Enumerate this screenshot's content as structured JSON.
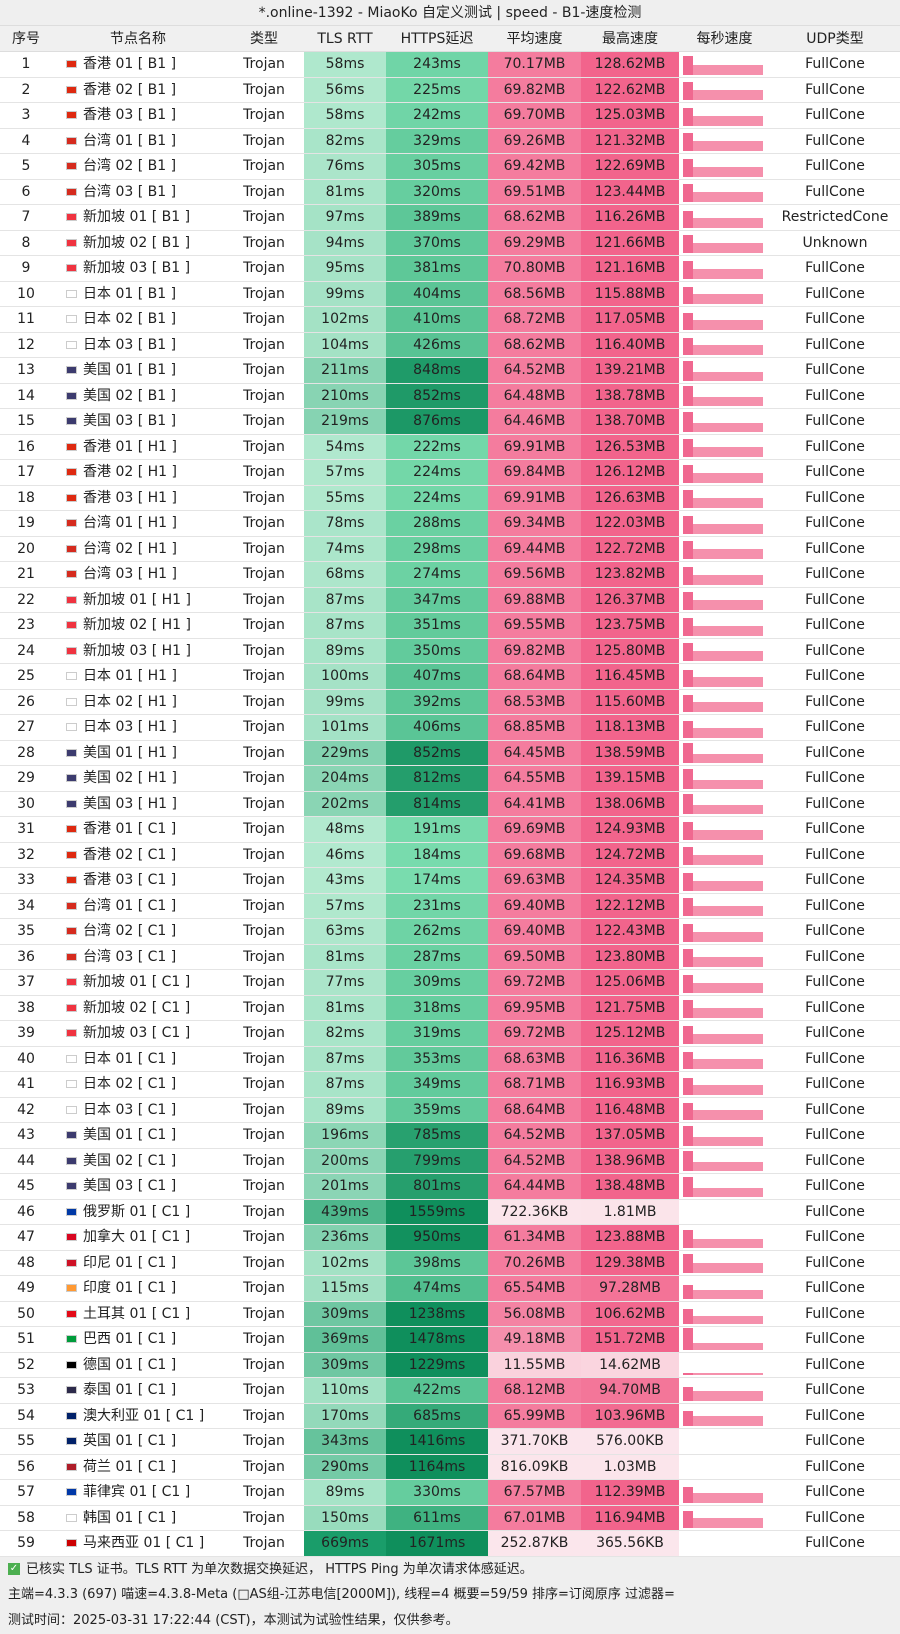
{
  "title": "*.online-1392 - MiaoKo 自定义测试 | speed - B1-速度检测",
  "headers": [
    "序号",
    "节点名称",
    "类型",
    "TLS RTT",
    "HTTPS延迟",
    "平均速度",
    "最高速度",
    "每秒速度",
    "UDP类型"
  ],
  "flag_colors": {
    "hk": "#de2910",
    "tw": "#d52b1e",
    "sg": "#ef3340",
    "jp": "#ffffff",
    "us": "#3c3b6e",
    "ru": "#0039a6",
    "ca": "#d80621",
    "id": "#ce1126",
    "in": "#ff9933",
    "tr": "#e30a17",
    "br": "#009c3b",
    "de": "#000000",
    "th": "#2d2a4a",
    "au": "#012169",
    "gb": "#012169",
    "nl": "#ae1c28",
    "ph": "#0038a8",
    "kr": "#ffffff",
    "my": "#cc0001"
  },
  "rows": [
    [
      "1",
      "香港 01 [ B1 ]",
      "hk",
      "Trojan",
      "58ms",
      "243ms",
      "70.17MB",
      "128.62MB",
      "FullCone"
    ],
    [
      "2",
      "香港 02 [ B1 ]",
      "hk",
      "Trojan",
      "56ms",
      "225ms",
      "69.82MB",
      "122.62MB",
      "FullCone"
    ],
    [
      "3",
      "香港 03 [ B1 ]",
      "hk",
      "Trojan",
      "58ms",
      "242ms",
      "69.70MB",
      "125.03MB",
      "FullCone"
    ],
    [
      "4",
      "台湾 01 [ B1 ]",
      "tw",
      "Trojan",
      "82ms",
      "329ms",
      "69.26MB",
      "121.32MB",
      "FullCone"
    ],
    [
      "5",
      "台湾 02 [ B1 ]",
      "tw",
      "Trojan",
      "76ms",
      "305ms",
      "69.42MB",
      "122.69MB",
      "FullCone"
    ],
    [
      "6",
      "台湾 03 [ B1 ]",
      "tw",
      "Trojan",
      "81ms",
      "320ms",
      "69.51MB",
      "123.44MB",
      "FullCone"
    ],
    [
      "7",
      "新加坡 01 [ B1 ]",
      "sg",
      "Trojan",
      "97ms",
      "389ms",
      "68.62MB",
      "116.26MB",
      "RestrictedCone"
    ],
    [
      "8",
      "新加坡 02 [ B1 ]",
      "sg",
      "Trojan",
      "94ms",
      "370ms",
      "69.29MB",
      "121.66MB",
      "Unknown"
    ],
    [
      "9",
      "新加坡 03 [ B1 ]",
      "sg",
      "Trojan",
      "95ms",
      "381ms",
      "70.80MB",
      "121.16MB",
      "FullCone"
    ],
    [
      "10",
      "日本 01 [ B1 ]",
      "jp",
      "Trojan",
      "99ms",
      "404ms",
      "68.56MB",
      "115.88MB",
      "FullCone"
    ],
    [
      "11",
      "日本 02 [ B1 ]",
      "jp",
      "Trojan",
      "102ms",
      "410ms",
      "68.72MB",
      "117.05MB",
      "FullCone"
    ],
    [
      "12",
      "日本 03 [ B1 ]",
      "jp",
      "Trojan",
      "104ms",
      "426ms",
      "68.62MB",
      "116.40MB",
      "FullCone"
    ],
    [
      "13",
      "美国 01 [ B1 ]",
      "us",
      "Trojan",
      "211ms",
      "848ms",
      "64.52MB",
      "139.21MB",
      "FullCone"
    ],
    [
      "14",
      "美国 02 [ B1 ]",
      "us",
      "Trojan",
      "210ms",
      "852ms",
      "64.48MB",
      "138.78MB",
      "FullCone"
    ],
    [
      "15",
      "美国 03 [ B1 ]",
      "us",
      "Trojan",
      "219ms",
      "876ms",
      "64.46MB",
      "138.70MB",
      "FullCone"
    ],
    [
      "16",
      "香港 01 [ H1 ]",
      "hk",
      "Trojan",
      "54ms",
      "222ms",
      "69.91MB",
      "126.53MB",
      "FullCone"
    ],
    [
      "17",
      "香港 02 [ H1 ]",
      "hk",
      "Trojan",
      "57ms",
      "224ms",
      "69.84MB",
      "126.12MB",
      "FullCone"
    ],
    [
      "18",
      "香港 03 [ H1 ]",
      "hk",
      "Trojan",
      "55ms",
      "224ms",
      "69.91MB",
      "126.63MB",
      "FullCone"
    ],
    [
      "19",
      "台湾 01 [ H1 ]",
      "tw",
      "Trojan",
      "78ms",
      "288ms",
      "69.34MB",
      "122.03MB",
      "FullCone"
    ],
    [
      "20",
      "台湾 02 [ H1 ]",
      "tw",
      "Trojan",
      "74ms",
      "298ms",
      "69.44MB",
      "122.72MB",
      "FullCone"
    ],
    [
      "21",
      "台湾 03 [ H1 ]",
      "tw",
      "Trojan",
      "68ms",
      "274ms",
      "69.56MB",
      "123.82MB",
      "FullCone"
    ],
    [
      "22",
      "新加坡 01 [ H1 ]",
      "sg",
      "Trojan",
      "87ms",
      "347ms",
      "69.88MB",
      "126.37MB",
      "FullCone"
    ],
    [
      "23",
      "新加坡 02 [ H1 ]",
      "sg",
      "Trojan",
      "87ms",
      "351ms",
      "69.55MB",
      "123.75MB",
      "FullCone"
    ],
    [
      "24",
      "新加坡 03 [ H1 ]",
      "sg",
      "Trojan",
      "89ms",
      "350ms",
      "69.82MB",
      "125.80MB",
      "FullCone"
    ],
    [
      "25",
      "日本 01 [ H1 ]",
      "jp",
      "Trojan",
      "100ms",
      "407ms",
      "68.64MB",
      "116.45MB",
      "FullCone"
    ],
    [
      "26",
      "日本 02 [ H1 ]",
      "jp",
      "Trojan",
      "99ms",
      "392ms",
      "68.53MB",
      "115.60MB",
      "FullCone"
    ],
    [
      "27",
      "日本 03 [ H1 ]",
      "jp",
      "Trojan",
      "101ms",
      "406ms",
      "68.85MB",
      "118.13MB",
      "FullCone"
    ],
    [
      "28",
      "美国 01 [ H1 ]",
      "us",
      "Trojan",
      "229ms",
      "852ms",
      "64.45MB",
      "138.59MB",
      "FullCone"
    ],
    [
      "29",
      "美国 02 [ H1 ]",
      "us",
      "Trojan",
      "204ms",
      "812ms",
      "64.55MB",
      "139.15MB",
      "FullCone"
    ],
    [
      "30",
      "美国 03 [ H1 ]",
      "us",
      "Trojan",
      "202ms",
      "814ms",
      "64.41MB",
      "138.06MB",
      "FullCone"
    ],
    [
      "31",
      "香港 01 [ C1 ]",
      "hk",
      "Trojan",
      "48ms",
      "191ms",
      "69.69MB",
      "124.93MB",
      "FullCone"
    ],
    [
      "32",
      "香港 02 [ C1 ]",
      "hk",
      "Trojan",
      "46ms",
      "184ms",
      "69.68MB",
      "124.72MB",
      "FullCone"
    ],
    [
      "33",
      "香港 03 [ C1 ]",
      "hk",
      "Trojan",
      "43ms",
      "174ms",
      "69.63MB",
      "124.35MB",
      "FullCone"
    ],
    [
      "34",
      "台湾 01 [ C1 ]",
      "tw",
      "Trojan",
      "57ms",
      "231ms",
      "69.40MB",
      "122.12MB",
      "FullCone"
    ],
    [
      "35",
      "台湾 02 [ C1 ]",
      "tw",
      "Trojan",
      "63ms",
      "262ms",
      "69.40MB",
      "122.43MB",
      "FullCone"
    ],
    [
      "36",
      "台湾 03 [ C1 ]",
      "tw",
      "Trojan",
      "81ms",
      "287ms",
      "69.50MB",
      "123.80MB",
      "FullCone"
    ],
    [
      "37",
      "新加坡 01 [ C1 ]",
      "sg",
      "Trojan",
      "77ms",
      "309ms",
      "69.72MB",
      "125.06MB",
      "FullCone"
    ],
    [
      "38",
      "新加坡 02 [ C1 ]",
      "sg",
      "Trojan",
      "81ms",
      "318ms",
      "69.95MB",
      "121.75MB",
      "FullCone"
    ],
    [
      "39",
      "新加坡 03 [ C1 ]",
      "sg",
      "Trojan",
      "82ms",
      "319ms",
      "69.72MB",
      "125.12MB",
      "FullCone"
    ],
    [
      "40",
      "日本 01 [ C1 ]",
      "jp",
      "Trojan",
      "87ms",
      "353ms",
      "68.63MB",
      "116.36MB",
      "FullCone"
    ],
    [
      "41",
      "日本 02 [ C1 ]",
      "jp",
      "Trojan",
      "87ms",
      "349ms",
      "68.71MB",
      "116.93MB",
      "FullCone"
    ],
    [
      "42",
      "日本 03 [ C1 ]",
      "jp",
      "Trojan",
      "89ms",
      "359ms",
      "68.64MB",
      "116.48MB",
      "FullCone"
    ],
    [
      "43",
      "美国 01 [ C1 ]",
      "us",
      "Trojan",
      "196ms",
      "785ms",
      "64.52MB",
      "137.05MB",
      "FullCone"
    ],
    [
      "44",
      "美国 02 [ C1 ]",
      "us",
      "Trojan",
      "200ms",
      "799ms",
      "64.52MB",
      "138.96MB",
      "FullCone"
    ],
    [
      "45",
      "美国 03 [ C1 ]",
      "us",
      "Trojan",
      "201ms",
      "801ms",
      "64.44MB",
      "138.48MB",
      "FullCone"
    ],
    [
      "46",
      "俄罗斯 01 [ C1 ]",
      "ru",
      "Trojan",
      "439ms",
      "1559ms",
      "722.36KB",
      "1.81MB",
      "FullCone"
    ],
    [
      "47",
      "加拿大 01 [ C1 ]",
      "ca",
      "Trojan",
      "236ms",
      "950ms",
      "61.34MB",
      "123.88MB",
      "FullCone"
    ],
    [
      "48",
      "印尼 01 [ C1 ]",
      "id",
      "Trojan",
      "102ms",
      "398ms",
      "70.26MB",
      "129.38MB",
      "FullCone"
    ],
    [
      "49",
      "印度 01 [ C1 ]",
      "in",
      "Trojan",
      "115ms",
      "474ms",
      "65.54MB",
      "97.28MB",
      "FullCone"
    ],
    [
      "50",
      "土耳其 01 [ C1 ]",
      "tr",
      "Trojan",
      "309ms",
      "1238ms",
      "56.08MB",
      "106.62MB",
      "FullCone"
    ],
    [
      "51",
      "巴西 01 [ C1 ]",
      "br",
      "Trojan",
      "369ms",
      "1478ms",
      "49.18MB",
      "151.72MB",
      "FullCone"
    ],
    [
      "52",
      "德国 01 [ C1 ]",
      "de",
      "Trojan",
      "309ms",
      "1229ms",
      "11.55MB",
      "14.62MB",
      "FullCone"
    ],
    [
      "53",
      "泰国 01 [ C1 ]",
      "th",
      "Trojan",
      "110ms",
      "422ms",
      "68.12MB",
      "94.70MB",
      "FullCone"
    ],
    [
      "54",
      "澳大利亚 01 [ C1 ]",
      "au",
      "Trojan",
      "170ms",
      "685ms",
      "65.99MB",
      "103.96MB",
      "FullCone"
    ],
    [
      "55",
      "英国 01 [ C1 ]",
      "gb",
      "Trojan",
      "343ms",
      "1416ms",
      "371.70KB",
      "576.00KB",
      "FullCone"
    ],
    [
      "56",
      "荷兰 01 [ C1 ]",
      "nl",
      "Trojan",
      "290ms",
      "1164ms",
      "816.09KB",
      "1.03MB",
      "FullCone"
    ],
    [
      "57",
      "菲律宾 01 [ C1 ]",
      "ph",
      "Trojan",
      "89ms",
      "330ms",
      "67.57MB",
      "112.39MB",
      "FullCone"
    ],
    [
      "58",
      "韩国 01 [ C1 ]",
      "kr",
      "Trojan",
      "150ms",
      "611ms",
      "67.01MB",
      "116.94MB",
      "FullCone"
    ],
    [
      "59",
      "马来西亚 01 [ C1 ]",
      "my",
      "Trojan",
      "669ms",
      "1671ms",
      "252.87KB",
      "365.56KB",
      "FullCone"
    ]
  ],
  "footer": {
    "check_icon": "checkbox-checked-icon",
    "line1": "已核实 TLS 证书。TLS RTT 为单次数据交换延迟， HTTPS Ping 为单次请求体感延迟。",
    "line2": "主端=4.3.3 (697) 喵速=4.3.8-Meta (□AS组-江苏电信[2000M]), 线程=4 概要=59/59 排序=订阅原序 过滤器=",
    "line3": "测试时间：2025-03-31 17:22:44 (CST)，本测试为试验性结果，仅供参考。"
  }
}
